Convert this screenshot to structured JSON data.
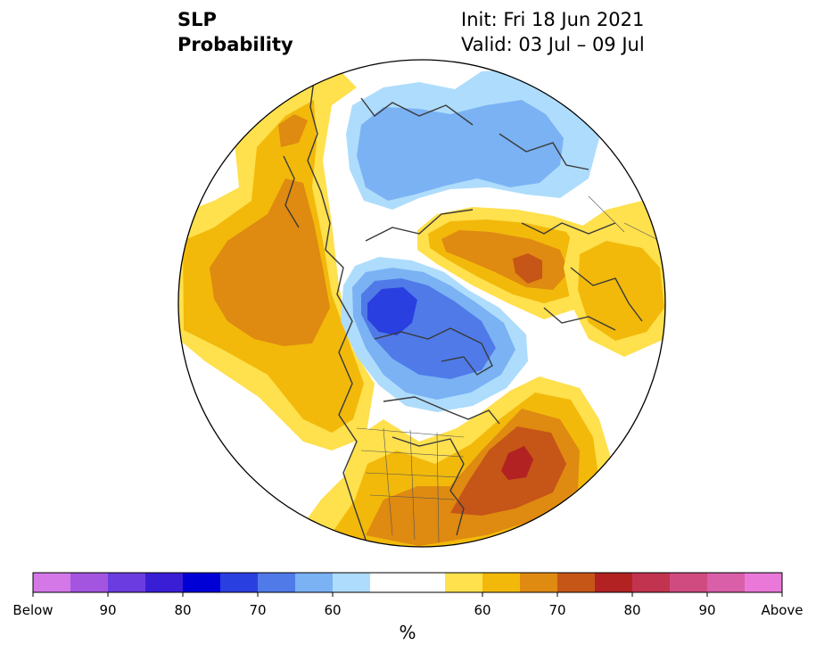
{
  "title": {
    "line1": "SLP",
    "line2": "Probability",
    "init": "Init: Fri 18 Jun 2021",
    "valid": "Valid: 03 Jul – 09 Jul"
  },
  "colorbar": {
    "unit": "%",
    "bins": [
      {
        "color": "#d478e8"
      },
      {
        "color": "#a455e0"
      },
      {
        "color": "#6b3de0"
      },
      {
        "color": "#3a1ed6"
      },
      {
        "color": "#0000d6"
      },
      {
        "color": "#2a3fe0"
      },
      {
        "color": "#4f7ae8"
      },
      {
        "color": "#7ab2f4"
      },
      {
        "color": "#aedcfc"
      },
      {
        "color": "#ffffff"
      },
      {
        "color": "#ffffff"
      },
      {
        "color": "#ffe04d"
      },
      {
        "color": "#f2b90b"
      },
      {
        "color": "#df8a10"
      },
      {
        "color": "#c65518"
      },
      {
        "color": "#b22222"
      },
      {
        "color": "#c23350"
      },
      {
        "color": "#cf4b80"
      },
      {
        "color": "#d95fa8"
      },
      {
        "color": "#e978d8"
      }
    ],
    "labels": [
      {
        "text": "Below",
        "bin": 0
      },
      {
        "text": "90",
        "bin": 2
      },
      {
        "text": "80",
        "bin": 4
      },
      {
        "text": "70",
        "bin": 6
      },
      {
        "text": "60",
        "bin": 8
      },
      {
        "text": "60",
        "bin": 12
      },
      {
        "text": "70",
        "bin": 14
      },
      {
        "text": "80",
        "bin": 16
      },
      {
        "text": "90",
        "bin": 18
      },
      {
        "text": "Above",
        "bin": 20
      }
    ]
  },
  "regions": [
    {
      "name": "pacific-anomaly",
      "category": "above",
      "levels": [
        "#ffe04d",
        "#f2b90b",
        "#df8a10"
      ]
    },
    {
      "name": "atlantic-anomaly",
      "category": "above",
      "levels": [
        "#ffe04d",
        "#f2b90b",
        "#df8a10",
        "#c65518",
        "#b22222"
      ]
    },
    {
      "name": "siberia-anomaly",
      "category": "above",
      "levels": [
        "#ffe04d",
        "#f2b90b",
        "#df8a10",
        "#c65518"
      ]
    },
    {
      "name": "europe-anomaly",
      "category": "above",
      "levels": [
        "#ffe04d",
        "#f2b90b"
      ]
    },
    {
      "name": "arctic-anomaly",
      "category": "below",
      "levels": [
        "#aedcfc",
        "#7ab2f4",
        "#4f7ae8",
        "#2a3fe0"
      ]
    },
    {
      "name": "asia-anomaly",
      "category": "below",
      "levels": [
        "#aedcfc",
        "#7ab2f4"
      ]
    }
  ]
}
